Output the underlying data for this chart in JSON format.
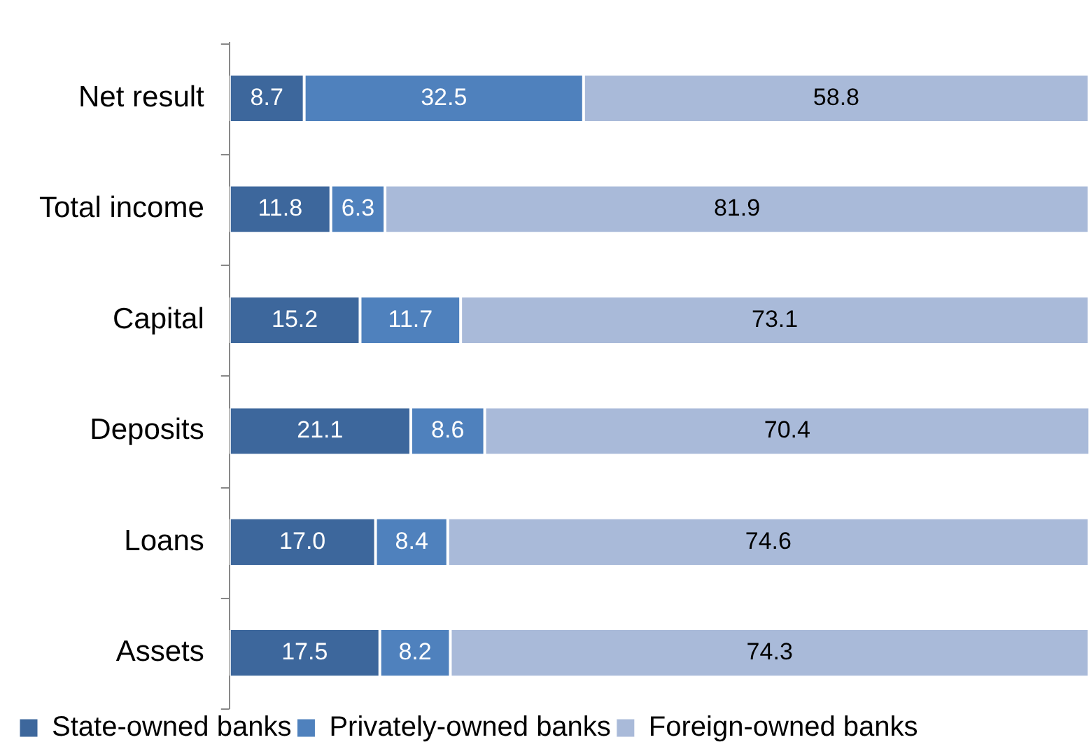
{
  "chart_data": {
    "type": "bar",
    "orientation": "horizontal",
    "stacked": true,
    "categories": [
      "Net result",
      "Total income",
      "Capital",
      "Deposits",
      "Loans",
      "Assets"
    ],
    "series": [
      {
        "name": "State-owned banks",
        "color": "#3d679c",
        "values": [
          8.7,
          11.8,
          15.2,
          21.1,
          17.0,
          17.5
        ],
        "value_labels": [
          "8.7",
          "11.8",
          "15.2",
          "21.1",
          "17.0",
          "17.5"
        ]
      },
      {
        "name": "Privately-owned banks",
        "color": "#4f81bd",
        "values": [
          32.5,
          6.3,
          11.7,
          8.6,
          8.4,
          8.2
        ],
        "value_labels": [
          "32.5",
          "6.3",
          "11.7",
          "8.6",
          "8.4",
          "8.2"
        ]
      },
      {
        "name": "Foreign-owned banks",
        "color": "#a9bad9",
        "values": [
          58.8,
          81.9,
          73.1,
          70.4,
          74.6,
          74.3
        ],
        "value_labels": [
          "58.8",
          "81.9",
          "73.1",
          "70.4",
          "74.6",
          "74.3"
        ]
      }
    ],
    "xlim": [
      0,
      100
    ],
    "tick_labels": "y",
    "legend": "bottom"
  }
}
